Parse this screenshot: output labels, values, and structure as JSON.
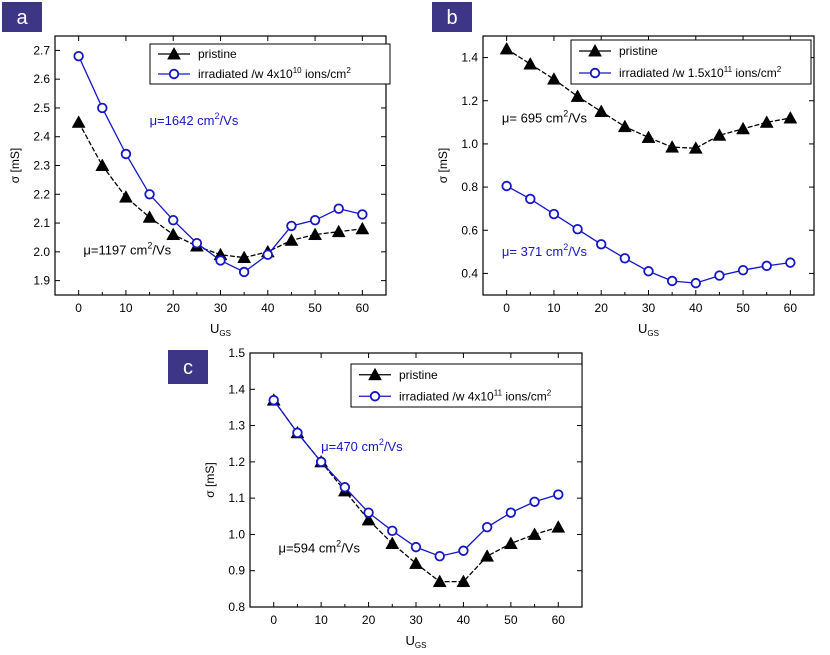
{
  "chart_data": [
    {
      "type": "line",
      "panel_label": "a",
      "title": "",
      "xlabel": "U",
      "xlabel_sub": "GS",
      "ylabel": "σ [mS]",
      "xlim": [
        -5,
        65
      ],
      "ylim": [
        1.85,
        2.75
      ],
      "xticks": [
        0,
        10,
        20,
        30,
        40,
        50,
        60
      ],
      "yticks": [
        1.9,
        2.0,
        2.1,
        2.2,
        2.3,
        2.4,
        2.5,
        2.6,
        2.7
      ],
      "ytick_decimals": 1,
      "grid": false,
      "legend_position": "top-right",
      "x": [
        0,
        5,
        10,
        15,
        20,
        25,
        30,
        35,
        40,
        45,
        50,
        55,
        60
      ],
      "series": [
        {
          "name": "pristine",
          "marker": "triangle",
          "color": "#000000",
          "values": [
            2.45,
            2.3,
            2.19,
            2.12,
            2.06,
            2.02,
            1.99,
            1.98,
            2.0,
            2.04,
            2.06,
            2.07,
            2.08
          ]
        },
        {
          "name": "irradiated /w 4x10",
          "name_sup": "10",
          "name_suffix": " ions/cm",
          "name_sup2": "2",
          "marker": "circle",
          "color": "#1515c8",
          "values": [
            2.68,
            2.5,
            2.34,
            2.2,
            2.11,
            2.03,
            1.97,
            1.93,
            1.99,
            2.09,
            2.11,
            2.15,
            2.13
          ]
        }
      ],
      "annotations": [
        {
          "pre": "μ=1642 cm",
          "sup": "2",
          "post": "/Vs",
          "color": "#1515c8",
          "at": [
            15,
            2.44
          ]
        },
        {
          "pre": "μ=1197 cm",
          "sup": "2",
          "post": "/Vs",
          "color": "#000000",
          "at": [
            1,
            1.99
          ]
        }
      ]
    },
    {
      "type": "line",
      "panel_label": "b",
      "title": "",
      "xlabel": "U",
      "xlabel_sub": "GS",
      "ylabel": "σ [mS]",
      "xlim": [
        -5,
        65
      ],
      "ylim": [
        0.3,
        1.5
      ],
      "xticks": [
        0,
        10,
        20,
        30,
        40,
        50,
        60
      ],
      "yticks": [
        0.4,
        0.6,
        0.8,
        1.0,
        1.2,
        1.4
      ],
      "ytick_decimals": 1,
      "grid": false,
      "legend_position": "top-right",
      "x": [
        0,
        5,
        10,
        15,
        20,
        25,
        30,
        35,
        40,
        45,
        50,
        55,
        60
      ],
      "series": [
        {
          "name": "pristine",
          "marker": "triangle",
          "color": "#000000",
          "values": [
            1.44,
            1.37,
            1.3,
            1.22,
            1.15,
            1.08,
            1.03,
            0.985,
            0.98,
            1.04,
            1.07,
            1.1,
            1.12
          ]
        },
        {
          "name": "irradiated /w 1.5x10",
          "name_sup": "11",
          "name_suffix": " ions/cm",
          "name_sup2": "2",
          "marker": "circle",
          "color": "#1515c8",
          "values": [
            0.805,
            0.745,
            0.675,
            0.605,
            0.535,
            0.47,
            0.41,
            0.365,
            0.355,
            0.39,
            0.415,
            0.435,
            0.45
          ]
        }
      ],
      "annotations": [
        {
          "pre": "μ= 695 cm",
          "sup": "2",
          "post": "/Vs",
          "color": "#000000",
          "at": [
            -1,
            1.1
          ]
        },
        {
          "pre": "μ= 371 cm",
          "sup": "2",
          "post": "/Vs",
          "color": "#1515c8",
          "at": [
            -1,
            0.48
          ]
        }
      ]
    },
    {
      "type": "line",
      "panel_label": "c",
      "title": "",
      "xlabel": "U",
      "xlabel_sub": "GS",
      "ylabel": "σ [mS]",
      "xlim": [
        -5,
        65
      ],
      "ylim": [
        0.8,
        1.5
      ],
      "xticks": [
        0,
        10,
        20,
        30,
        40,
        50,
        60
      ],
      "yticks": [
        0.8,
        0.9,
        1.0,
        1.1,
        1.2,
        1.3,
        1.4,
        1.5
      ],
      "ytick_decimals": 1,
      "grid": false,
      "legend_position": "top-right",
      "x": [
        0,
        5,
        10,
        15,
        20,
        25,
        30,
        35,
        40,
        45,
        50,
        55,
        60
      ],
      "series": [
        {
          "name": "pristine",
          "marker": "triangle",
          "color": "#000000",
          "values": [
            1.37,
            1.28,
            1.2,
            1.12,
            1.04,
            0.975,
            0.92,
            0.87,
            0.87,
            0.94,
            0.975,
            1.0,
            1.02
          ]
        },
        {
          "name": "irradiated /w 4x10",
          "name_sup": "11",
          "name_suffix": " ions/cm",
          "name_sup2": "2",
          "marker": "circle",
          "color": "#1515c8",
          "values": [
            1.37,
            1.28,
            1.2,
            1.13,
            1.06,
            1.01,
            0.965,
            0.94,
            0.955,
            1.02,
            1.06,
            1.09,
            1.11
          ]
        }
      ],
      "annotations": [
        {
          "pre": "μ=470 cm",
          "sup": "2",
          "post": "/Vs",
          "color": "#1515c8",
          "at": [
            10,
            1.23
          ]
        },
        {
          "pre": "μ=594 cm",
          "sup": "2",
          "post": "/Vs",
          "color": "#000000",
          "at": [
            1,
            0.95
          ]
        }
      ]
    }
  ]
}
